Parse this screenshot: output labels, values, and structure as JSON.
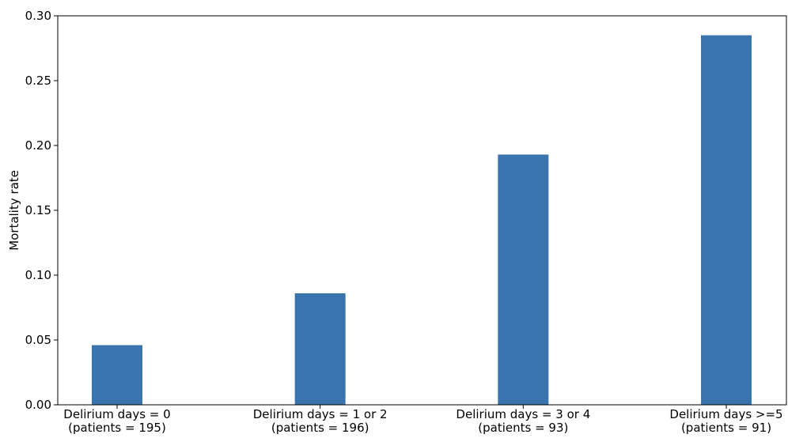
{
  "chart_data": {
    "type": "bar",
    "title": "",
    "xlabel": "",
    "ylabel": "Mortality rate",
    "categories": [
      [
        "Delirium days = 0",
        "(patients = 195)"
      ],
      [
        "Delirium days = 1 or 2",
        "(patients = 196)"
      ],
      [
        "Delirium days = 3 or 4",
        "(patients = 93)"
      ],
      [
        "Delirium days >=5",
        "(patients = 91)"
      ]
    ],
    "values": [
      0.046,
      0.086,
      0.193,
      0.285
    ],
    "ylim": [
      0,
      0.3
    ],
    "yticks": [
      0.0,
      0.05,
      0.1,
      0.15,
      0.2,
      0.25,
      0.3
    ],
    "ytick_labels": [
      "0.00",
      "0.05",
      "0.10",
      "0.15",
      "0.20",
      "0.25",
      "0.30"
    ],
    "grid": false,
    "colors": {
      "bar": "#3a74ae"
    }
  }
}
